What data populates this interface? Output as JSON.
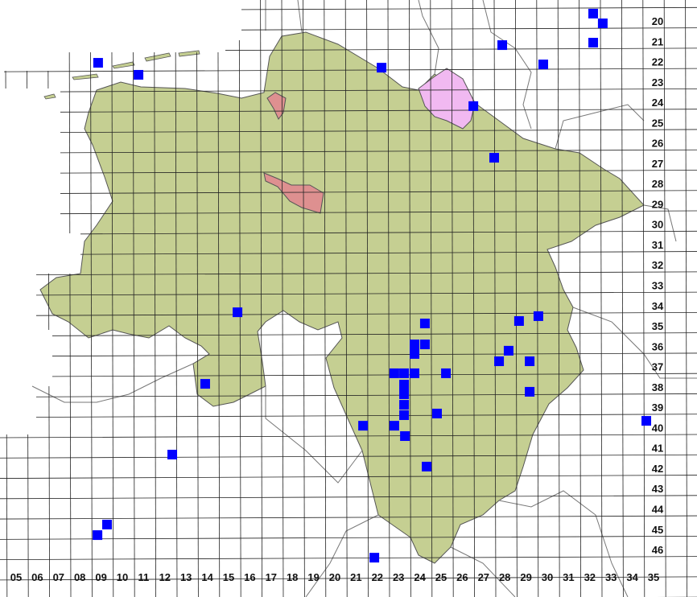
{
  "colors": {
    "state_fill": "#c5cf92",
    "hamburg_fill": "#f1b9f1",
    "bremen_fill": "#de9090",
    "grid_line": "#222222",
    "border_line": "#777777",
    "occurrence_marker": "#0000ff"
  },
  "column_labels": [
    "05",
    "06",
    "07",
    "08",
    "09",
    "10",
    "11",
    "12",
    "13",
    "14",
    "15",
    "16",
    "17",
    "18",
    "19",
    "20",
    "21",
    "22",
    "23",
    "24",
    "25",
    "26",
    "27",
    "28",
    "29",
    "30",
    "31",
    "32",
    "33",
    "34",
    "35"
  ],
  "row_labels": [
    "20",
    "21",
    "22",
    "23",
    "24",
    "25",
    "26",
    "27",
    "28",
    "29",
    "30",
    "31",
    "32",
    "33",
    "34",
    "35",
    "36",
    "37",
    "38",
    "39",
    "40",
    "41",
    "42",
    "43",
    "44",
    "45",
    "46"
  ],
  "occurrences": [
    [
      8.86,
      22.06
    ],
    [
      10.76,
      22.65
    ],
    [
      22.2,
      22.3
    ],
    [
      27.88,
      21.19
    ],
    [
      32.16,
      19.64
    ],
    [
      32.61,
      20.12
    ],
    [
      32.16,
      21.07
    ],
    [
      29.81,
      22.14
    ],
    [
      26.52,
      24.19
    ],
    [
      27.5,
      26.73
    ],
    [
      15.42,
      34.33
    ],
    [
      29.58,
      34.52
    ],
    [
      24.24,
      34.88
    ],
    [
      28.67,
      34.76
    ],
    [
      23.75,
      35.91
    ],
    [
      24.24,
      35.91
    ],
    [
      23.75,
      36.38
    ],
    [
      28.18,
      36.22
    ],
    [
      27.73,
      36.74
    ],
    [
      29.17,
      36.74
    ],
    [
      22.8,
      37.33
    ],
    [
      23.26,
      37.33
    ],
    [
      23.75,
      37.33
    ],
    [
      25.23,
      37.33
    ],
    [
      23.26,
      37.89
    ],
    [
      29.17,
      38.24
    ],
    [
      23.26,
      38.36
    ],
    [
      23.26,
      38.88
    ],
    [
      23.26,
      39.39
    ],
    [
      24.81,
      39.31
    ],
    [
      13.9,
      37.85
    ],
    [
      21.33,
      39.91
    ],
    [
      22.8,
      39.91
    ],
    [
      23.3,
      40.42
    ],
    [
      34.66,
      39.67
    ],
    [
      12.35,
      41.33
    ],
    [
      24.32,
      41.92
    ],
    [
      9.28,
      44.77
    ],
    [
      8.83,
      45.29
    ],
    [
      21.86,
      46.4
    ]
  ]
}
